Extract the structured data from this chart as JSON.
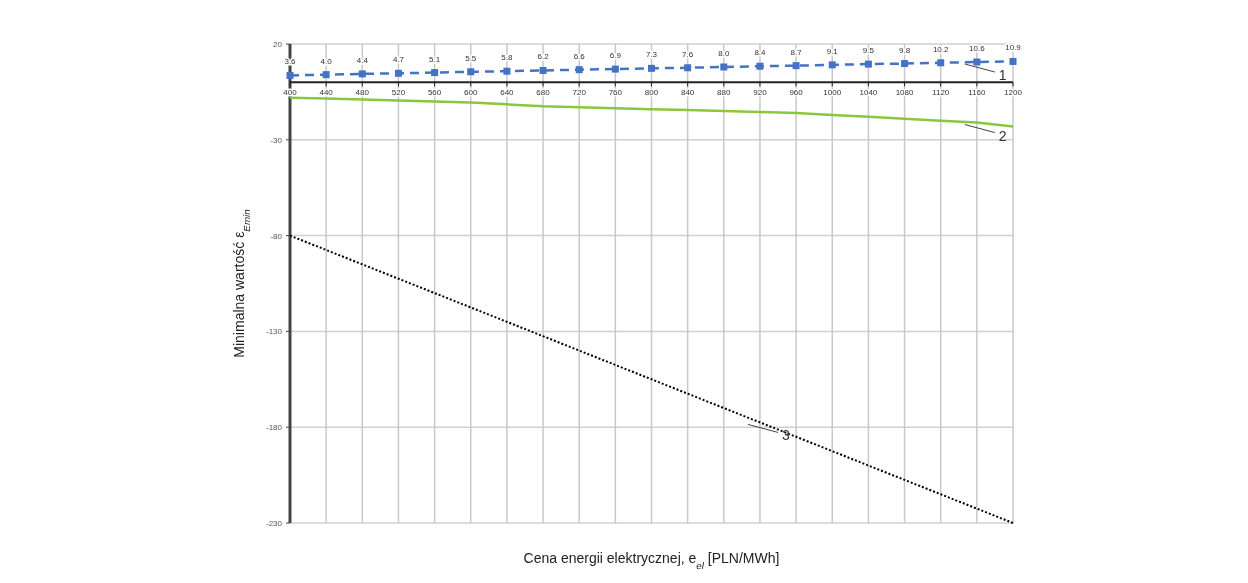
{
  "chart_data": {
    "type": "line",
    "xlabel": "Cena energii elektrycznej, e$_{el}$ [PLN/MWh]",
    "ylabel": "Minimalna wartość ε$_{Emin}$",
    "categories": [
      "400",
      "440",
      "480",
      "520",
      "560",
      "600",
      "640",
      "680",
      "720",
      "760",
      "800",
      "840",
      "880",
      "920",
      "960",
      "1000",
      "1040",
      "1080",
      "1120",
      "1160",
      "1200"
    ],
    "series": [
      {
        "color": "#4472c4",
        "values": [
          3.6,
          4.0,
          4.4,
          4.7,
          5.1,
          5.5,
          5.8,
          6.2,
          6.6,
          6.9,
          7.3,
          7.6,
          8.0,
          8.4,
          8.7,
          9.1,
          9.5,
          9.8,
          10.2,
          10.6,
          10.9
        ],
        "marker": "square",
        "line_style": "dashed",
        "value_labels": [
          "3.6",
          "4.0",
          "4.4",
          "4.7",
          "5.1",
          "5.5",
          "5.8",
          "6.2",
          "6.6",
          "6.9",
          "7.3",
          "7.6",
          "8.0",
          "8.4",
          "8.7",
          "9.1",
          "9.5",
          "9.8",
          "10.2",
          "10.6",
          "10.9"
        ]
      },
      {
        "color": "#8cc63f",
        "values": [
          -8,
          -8.5,
          -9,
          -9.5,
          -10,
          -10.5,
          -11.5,
          -12.5,
          -13,
          -13.5,
          -14,
          -14.5,
          -15,
          -15.5,
          -16,
          -17,
          -18,
          -19,
          -20,
          -21,
          -23
        ],
        "marker": "none",
        "line_style": "solid"
      },
      {
        "color": "#000000",
        "values": [
          -80,
          -87.5,
          -95,
          -102.5,
          -110,
          -117.5,
          -125,
          -132.5,
          -140,
          -147.5,
          -155,
          -162.5,
          -170,
          -177.5,
          -185,
          -192.5,
          -200,
          -207.5,
          -215,
          -222.5,
          -230
        ],
        "marker": "none",
        "line_style": "dotted"
      }
    ],
    "ylim": [
      -230,
      20
    ],
    "yticks": [
      20,
      -30,
      -80,
      -130,
      -180,
      -230
    ],
    "grid": true,
    "annotations": [
      {
        "text": "1",
        "x": "1160",
        "y": 10.6
      },
      {
        "text": "2",
        "x": "1160",
        "y": -21
      },
      {
        "text": "3",
        "x": "920",
        "y": -177.5
      }
    ]
  }
}
